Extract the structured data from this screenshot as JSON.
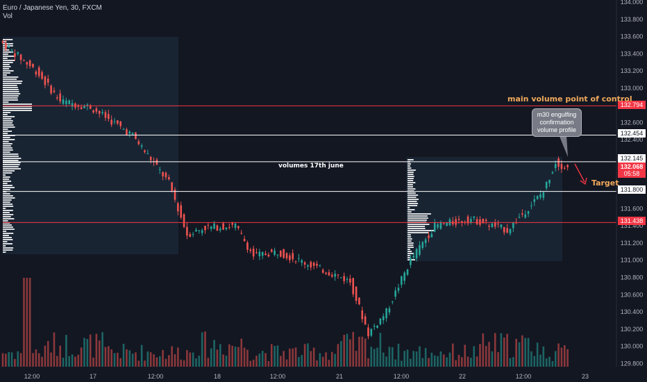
{
  "header": {
    "title": "Euro / Japanese Yen, 30, FXCM",
    "volume_label": "Vol"
  },
  "annotations": {
    "poc_label": "main volume point of control",
    "volumes_label": "volumes 17th june",
    "target_label": "Target",
    "callout_text": "m30 engulfing confirmation volume profile"
  },
  "price_tags": {
    "poc": "132.794",
    "level_upper": "132.454",
    "level_mid": "132.145",
    "current_price": "132.068",
    "countdown": "05:58",
    "level_lower": "131.800",
    "support": "131.438"
  },
  "colors": {
    "background": "#131722",
    "up": "#26a69a",
    "down": "#ef5350",
    "red_line": "#f23645",
    "white_line": "#ffffff",
    "annotation": "#f0a95b",
    "profile_box": "#1c2a3a"
  },
  "chart_data": {
    "type": "candlestick",
    "symbol": "Euro / Japanese Yen, 30, FXCM",
    "y_axis": {
      "range": [
        129.7,
        134.0
      ],
      "ticks": [
        "134.000",
        "133.800",
        "133.600",
        "133.400",
        "133.200",
        "133.000",
        "132.800",
        "132.600",
        "132.400",
        "132.200",
        "132.000",
        "131.800",
        "131.600",
        "131.400",
        "131.200",
        "131.000",
        "130.800",
        "130.600",
        "130.400",
        "130.200",
        "130.000",
        "129.800"
      ]
    },
    "x_axis": {
      "ticks": [
        "12:00",
        "17",
        "12:00",
        "18",
        "12:00",
        "21",
        "12:00",
        "22",
        "12:00",
        "23"
      ]
    },
    "horizontal_levels": [
      {
        "price": 132.794,
        "color": "red"
      },
      {
        "price": 132.454,
        "color": "white"
      },
      {
        "price": 132.145,
        "color": "white"
      },
      {
        "price": 131.8,
        "color": "white"
      },
      {
        "price": 131.438,
        "color": "red"
      }
    ],
    "price_path": [
      [
        "17 Jun 00:00",
        133.55
      ],
      [
        "17 Jun 06:00",
        133.2
      ],
      [
        "17 Jun 10:00",
        132.85
      ],
      [
        "17 Jun 15:00",
        132.78
      ],
      [
        "17 Jun 22:00",
        132.45
      ],
      [
        "18 Jun 04:00",
        131.9
      ],
      [
        "18 Jun 07:00",
        131.3
      ],
      [
        "18 Jun 10:00",
        131.38
      ],
      [
        "18 Jun 15:00",
        131.4
      ],
      [
        "18 Jun 18:00",
        131.05
      ],
      [
        "18 Jun 22:00",
        131.1
      ],
      [
        "21 Jun 05:00",
        130.9
      ],
      [
        "21 Jun 08:00",
        130.82
      ],
      [
        "21 Jun 10:00",
        130.75
      ],
      [
        "21 Jun 13:00",
        130.15
      ],
      [
        "21 Jun 16:00",
        130.4
      ],
      [
        "21 Jun 20:00",
        131.0
      ],
      [
        "22 Jun 00:00",
        131.4
      ],
      [
        "22 Jun 06:00",
        131.48
      ],
      [
        "22 Jun 12:00",
        131.35
      ],
      [
        "22 Jun 18:00",
        131.8
      ],
      [
        "22 Jun 20:00",
        132.14
      ],
      [
        "22 Jun 22:00",
        132.07
      ]
    ],
    "volume_spike": [
      "17 Jun 04:00",
      "max"
    ]
  }
}
